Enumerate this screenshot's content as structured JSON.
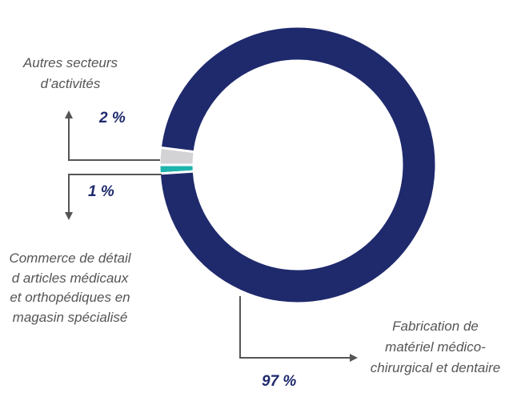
{
  "chart_data": {
    "type": "donut",
    "categories": [
      "Autres secteurs d’activités",
      "Commerce de détail d articles médicaux et orthopédiques en magasin spécialisé",
      "Fabrication de matériel médico-chirurgical et dentaire"
    ],
    "values": [
      2,
      1,
      97
    ],
    "value_labels": [
      "2 %",
      "1 %",
      "97 %"
    ],
    "colors": [
      "#d3d3d6",
      "#1fb3ad",
      "#1f2a6d"
    ]
  }
}
